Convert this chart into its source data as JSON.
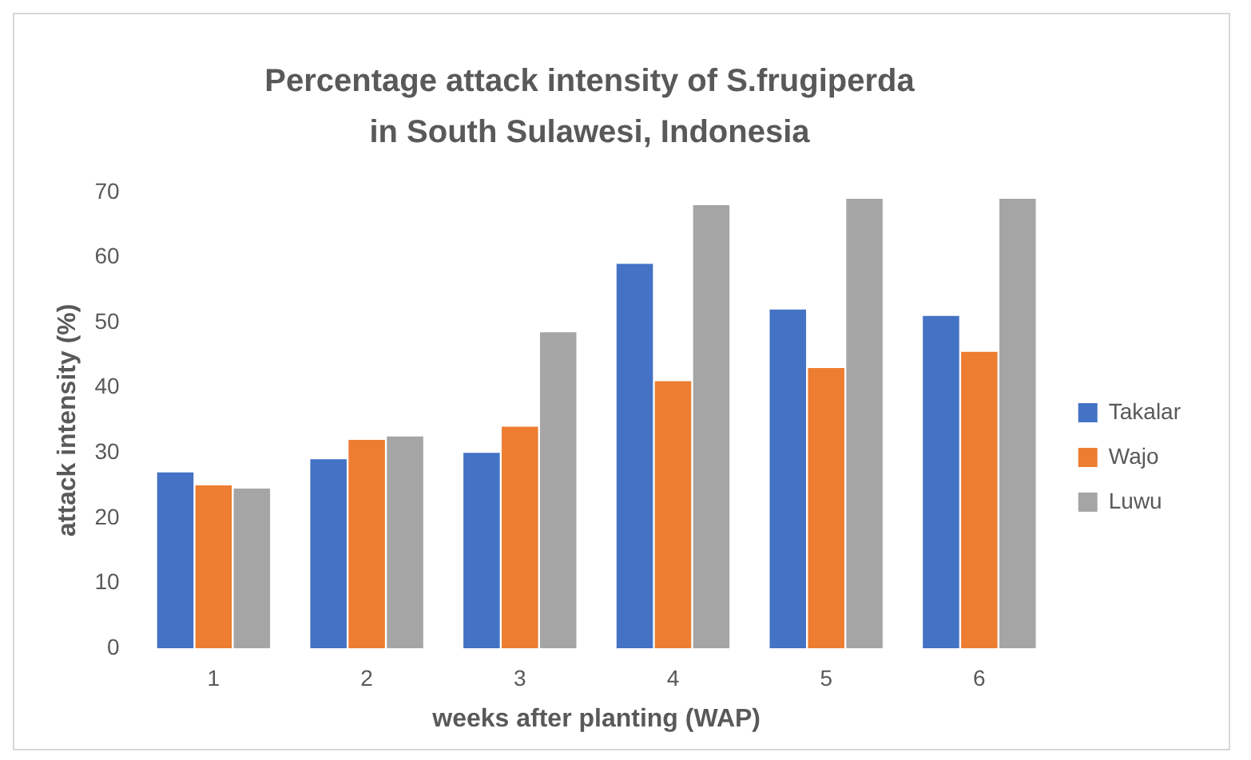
{
  "chart_data": {
    "type": "bar",
    "title": "Percentage attack intensity of S.frugiperda in South Sulawesi, Indonesia",
    "xlabel": "weeks after planting (WAP)",
    "ylabel": "attack intensity (%)",
    "categories": [
      "1",
      "2",
      "3",
      "4",
      "5",
      "6"
    ],
    "series": [
      {
        "name": "Takalar",
        "color": "#4472c4",
        "values": [
          27,
          29,
          30,
          59,
          52,
          51
        ]
      },
      {
        "name": "Wajo",
        "color": "#ed7d31",
        "values": [
          25,
          32,
          34,
          41,
          43,
          45.5
        ]
      },
      {
        "name": "Luwu",
        "color": "#a5a5a5",
        "values": [
          24.5,
          32.5,
          48.5,
          68,
          69,
          69
        ]
      }
    ],
    "ylim": [
      0,
      70
    ],
    "yticks": [
      0,
      10,
      20,
      30,
      40,
      50,
      60,
      70
    ],
    "grid": false,
    "legend": "right"
  }
}
